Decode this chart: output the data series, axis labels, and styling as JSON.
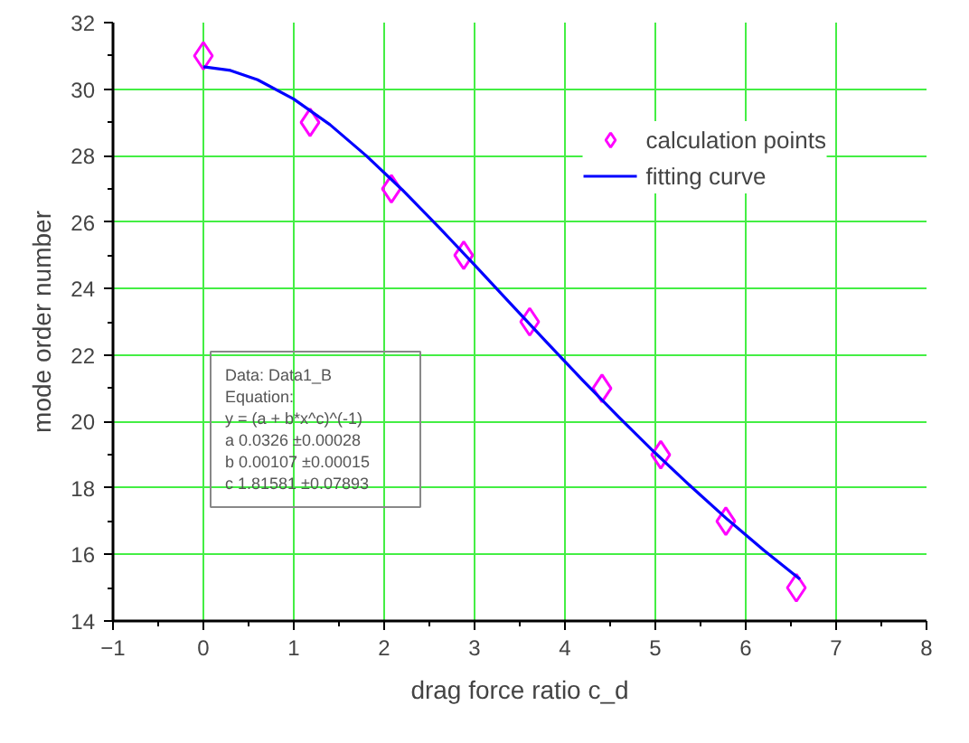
{
  "chart_data": {
    "type": "scatter",
    "xlabel": "drag force ratio c_d",
    "ylabel": "mode order number",
    "xlim": [
      -1,
      8
    ],
    "ylim": [
      14,
      32
    ],
    "xticks": [
      -1,
      0,
      1,
      2,
      3,
      4,
      5,
      6,
      7,
      8
    ],
    "yticks": [
      14,
      16,
      18,
      20,
      22,
      24,
      26,
      28,
      30,
      32
    ],
    "grid": true,
    "legend": "top right",
    "marker": "diamond",
    "series": [
      {
        "name": "calculation points",
        "color": "#ff00ff",
        "x": [
          0.0,
          1.18,
          2.08,
          2.88,
          3.61,
          4.41,
          5.06,
          5.78,
          6.56
        ],
        "values": [
          31,
          29,
          27,
          25,
          23,
          21,
          19,
          17,
          15
        ]
      },
      {
        "name": "fitting curve",
        "type": "line",
        "color": "#0000ff",
        "marker": "none",
        "x": [
          0,
          0.3,
          0.6,
          1.0,
          1.4,
          1.8,
          2.2,
          2.6,
          3.0,
          3.4,
          3.8,
          4.2,
          4.6,
          5.0,
          5.4,
          5.8,
          6.2,
          6.6
        ],
        "values": [
          30.67,
          30.56,
          30.28,
          29.7,
          28.93,
          28.0,
          26.97,
          25.86,
          24.71,
          23.54,
          22.38,
          21.23,
          20.12,
          19.05,
          18.03,
          17.05,
          16.13,
          15.26
        ]
      }
    ],
    "annotations": [
      "Data: Data1_B",
      "Equation:",
      "y = (a + b*x^c)^(-1)",
      "a        0.0326    ±0.00028",
      "b        0.00107  ±0.00015",
      "c        1.81581  ±0.07893"
    ]
  }
}
